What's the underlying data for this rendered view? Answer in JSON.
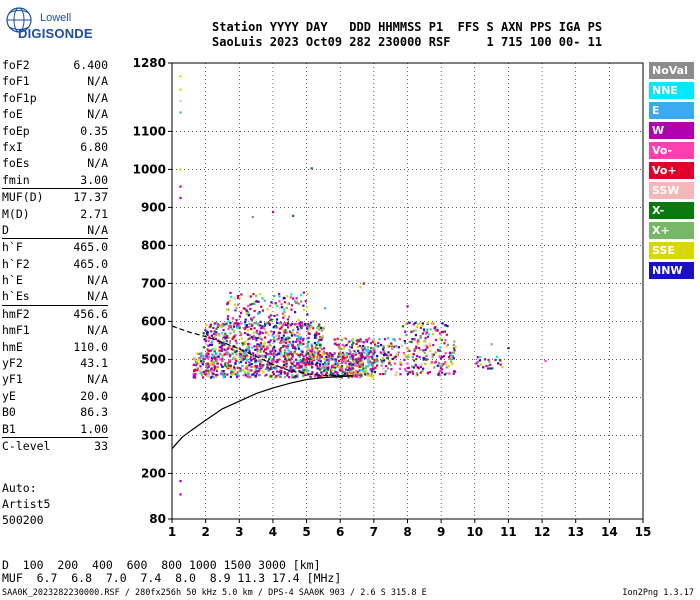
{
  "logo": {
    "line1": "Lowell",
    "line2": "DIGISONDE"
  },
  "header": {
    "line1": "Station YYYY DAY   DDD HHMMSS P1  FFS S AXN PPS IGA PS",
    "line2": "SaoLuis 2023 Oct09 282 230000 RSF     1 715 100 00- 11"
  },
  "params": [
    {
      "name": "foF2",
      "value": "6.400"
    },
    {
      "name": "foF1",
      "value": "N/A"
    },
    {
      "name": "foF1p",
      "value": "N/A"
    },
    {
      "name": "foE",
      "value": "N/A"
    },
    {
      "name": "foEp",
      "value": "0.35"
    },
    {
      "name": "fxI",
      "value": "6.80"
    },
    {
      "name": "foEs",
      "value": "N/A"
    },
    {
      "name": "fmin",
      "value": "3.00"
    },
    {
      "name": "MUF(D)",
      "value": "17.37",
      "sep": true
    },
    {
      "name": "M(D)",
      "value": "2.71"
    },
    {
      "name": "D",
      "value": "N/A"
    },
    {
      "name": "h`F",
      "value": "465.0",
      "sep": true
    },
    {
      "name": "h`F2",
      "value": "465.0"
    },
    {
      "name": "h`E",
      "value": "N/A"
    },
    {
      "name": "h`Es",
      "value": "N/A"
    },
    {
      "name": "hmF2",
      "value": "456.6",
      "sep": true
    },
    {
      "name": "hmF1",
      "value": "N/A"
    },
    {
      "name": "hmE",
      "value": "110.0"
    },
    {
      "name": "yF2",
      "value": "43.1"
    },
    {
      "name": "yF1",
      "value": "N/A"
    },
    {
      "name": "yE",
      "value": "20.0"
    },
    {
      "name": "B0",
      "value": "86.3"
    },
    {
      "name": "B1",
      "value": "1.00"
    },
    {
      "name": "C-level",
      "value": "33",
      "sep": true
    }
  ],
  "auto": {
    "line1": "Auto:",
    "line2": "Artist5",
    "line3": "500200"
  },
  "legend": [
    {
      "label": "NoVal",
      "color": "#8c8c8c"
    },
    {
      "label": "NNE",
      "color": "#00e8ff"
    },
    {
      "label": "E",
      "color": "#3aaaf0"
    },
    {
      "label": "W",
      "color": "#b000b0"
    },
    {
      "label": "Vo-",
      "color": "#ff3eb0"
    },
    {
      "label": "Vo+",
      "color": "#e0002a"
    },
    {
      "label": "SSW",
      "color": "#f4b6b6"
    },
    {
      "label": "X-",
      "color": "#0a7a10"
    },
    {
      "label": "X+",
      "color": "#76b866"
    },
    {
      "label": "SSE",
      "color": "#d8d800"
    },
    {
      "label": "NNW",
      "color": "#1a10c0"
    }
  ],
  "bottom": {
    "dist_label": "D",
    "dist_values": "  100  200  400  600  800 1000 1500 3000 [km]",
    "muf_label": "MUF",
    "muf_values": "  6.7  6.8  7.0  7.4  8.0  8.9 11.3 17.4 [MHz]"
  },
  "footer": {
    "left": "SAA0K_2023282230000.RSF / 280fx256h 50 kHz 5.0 km / DPS-4 SAA0K 903 / 2.6 S 315.8 E",
    "right": "Ion2Png 1.3.17"
  },
  "chart_data": {
    "type": "scatter",
    "x_ticks": [
      1,
      2,
      3,
      4,
      5,
      6,
      7,
      8,
      9,
      10,
      11,
      12,
      13,
      14,
      15
    ],
    "y_ticks": [
      80,
      200,
      300,
      400,
      500,
      600,
      700,
      800,
      900,
      1000,
      1100,
      1280
    ],
    "xlim": [
      1,
      15
    ],
    "ylim": [
      80,
      1280
    ],
    "grid": true,
    "series": [
      {
        "name": "profile",
        "style": "solid",
        "x": [
          1.0,
          1.3,
          1.6,
          2.0,
          2.5,
          3.0,
          3.5,
          4.0,
          4.5,
          5.0,
          5.5,
          6.0,
          6.4
        ],
        "y": [
          265,
          295,
          315,
          340,
          370,
          390,
          410,
          425,
          437,
          447,
          452,
          455,
          456.6
        ]
      },
      {
        "name": "trace",
        "style": "dashed",
        "x": [
          1.0,
          1.5,
          2.0,
          2.5,
          3.0,
          3.5,
          4.0,
          4.5,
          5.0,
          5.5,
          6.0,
          6.4
        ],
        "y": [
          588,
          572,
          560,
          545,
          528,
          508,
          487,
          470,
          462,
          458,
          457,
          457
        ]
      }
    ],
    "echo_regions": [
      {
        "x0": 1.6,
        "x1": 6.6,
        "y0": 455,
        "y1": 520,
        "n": 800
      },
      {
        "x0": 1.9,
        "x1": 5.5,
        "y0": 515,
        "y1": 600,
        "n": 520
      },
      {
        "x0": 2.6,
        "x1": 5.0,
        "y0": 590,
        "y1": 680,
        "n": 140
      },
      {
        "x0": 5.8,
        "x1": 7.0,
        "y0": 455,
        "y1": 560,
        "n": 140
      },
      {
        "x0": 6.5,
        "x1": 9.4,
        "y0": 460,
        "y1": 560,
        "n": 300
      },
      {
        "x0": 7.8,
        "x1": 9.2,
        "y0": 560,
        "y1": 600,
        "n": 50
      },
      {
        "x0": 10.0,
        "x1": 10.8,
        "y0": 478,
        "y1": 510,
        "n": 25
      }
    ],
    "scatter_points": [
      {
        "x": 1.25,
        "y": 1245
      },
      {
        "x": 1.25,
        "y": 1210
      },
      {
        "x": 1.25,
        "y": 1180
      },
      {
        "x": 1.25,
        "y": 1150
      },
      {
        "x": 1.25,
        "y": 1000
      },
      {
        "x": 1.25,
        "y": 955
      },
      {
        "x": 1.25,
        "y": 925
      },
      {
        "x": 1.25,
        "y": 180
      },
      {
        "x": 1.25,
        "y": 145
      },
      {
        "x": 3.4,
        "y": 875
      },
      {
        "x": 4.0,
        "y": 888
      },
      {
        "x": 4.6,
        "y": 878
      },
      {
        "x": 5.15,
        "y": 1003
      },
      {
        "x": 5.2,
        "y": 600
      },
      {
        "x": 5.55,
        "y": 635
      },
      {
        "x": 6.7,
        "y": 700
      },
      {
        "x": 6.6,
        "y": 690
      },
      {
        "x": 8.0,
        "y": 640
      },
      {
        "x": 11.0,
        "y": 530
      },
      {
        "x": 12.1,
        "y": 496
      },
      {
        "x": 10.5,
        "y": 540
      }
    ]
  }
}
